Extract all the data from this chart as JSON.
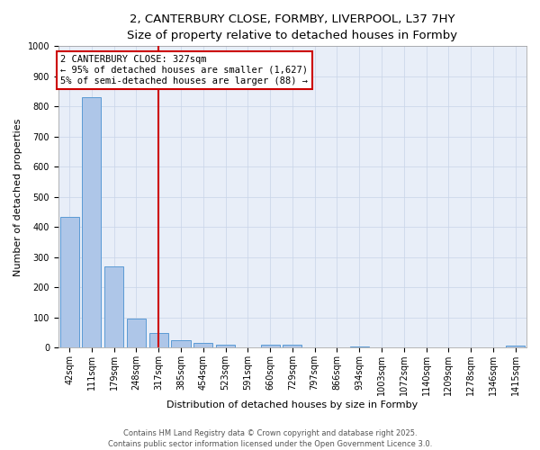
{
  "title_line1": "2, CANTERBURY CLOSE, FORMBY, LIVERPOOL, L37 7HY",
  "title_line2": "Size of property relative to detached houses in Formby",
  "xlabel": "Distribution of detached houses by size in Formby",
  "ylabel": "Number of detached properties",
  "categories": [
    "42sqm",
    "111sqm",
    "179sqm",
    "248sqm",
    "317sqm",
    "385sqm",
    "454sqm",
    "523sqm",
    "591sqm",
    "660sqm",
    "729sqm",
    "797sqm",
    "866sqm",
    "934sqm",
    "1003sqm",
    "1072sqm",
    "1140sqm",
    "1209sqm",
    "1278sqm",
    "1346sqm",
    "1415sqm"
  ],
  "values": [
    435,
    830,
    270,
    96,
    50,
    24,
    15,
    10,
    0,
    10,
    10,
    0,
    0,
    5,
    0,
    0,
    0,
    0,
    0,
    0,
    8
  ],
  "bar_color": "#aec6e8",
  "bar_edge_color": "#5b9bd5",
  "vline_x": 4,
  "vline_color": "#cc0000",
  "annotation_line1": "2 CANTERBURY CLOSE: 327sqm",
  "annotation_line2": "← 95% of detached houses are smaller (1,627)",
  "annotation_line3": "5% of semi-detached houses are larger (88) →",
  "annotation_box_color": "#cc0000",
  "annotation_facecolor": "white",
  "ylim": [
    0,
    1000
  ],
  "yticks": [
    0,
    100,
    200,
    300,
    400,
    500,
    600,
    700,
    800,
    900,
    1000
  ],
  "grid_color": "#c8d4e8",
  "background_color": "#e8eef8",
  "footer_line1": "Contains HM Land Registry data © Crown copyright and database right 2025.",
  "footer_line2": "Contains public sector information licensed under the Open Government Licence 3.0.",
  "title_fontsize": 9.5,
  "subtitle_fontsize": 9,
  "axis_label_fontsize": 8,
  "tick_fontsize": 7,
  "annotation_fontsize": 7.5,
  "footer_fontsize": 6
}
